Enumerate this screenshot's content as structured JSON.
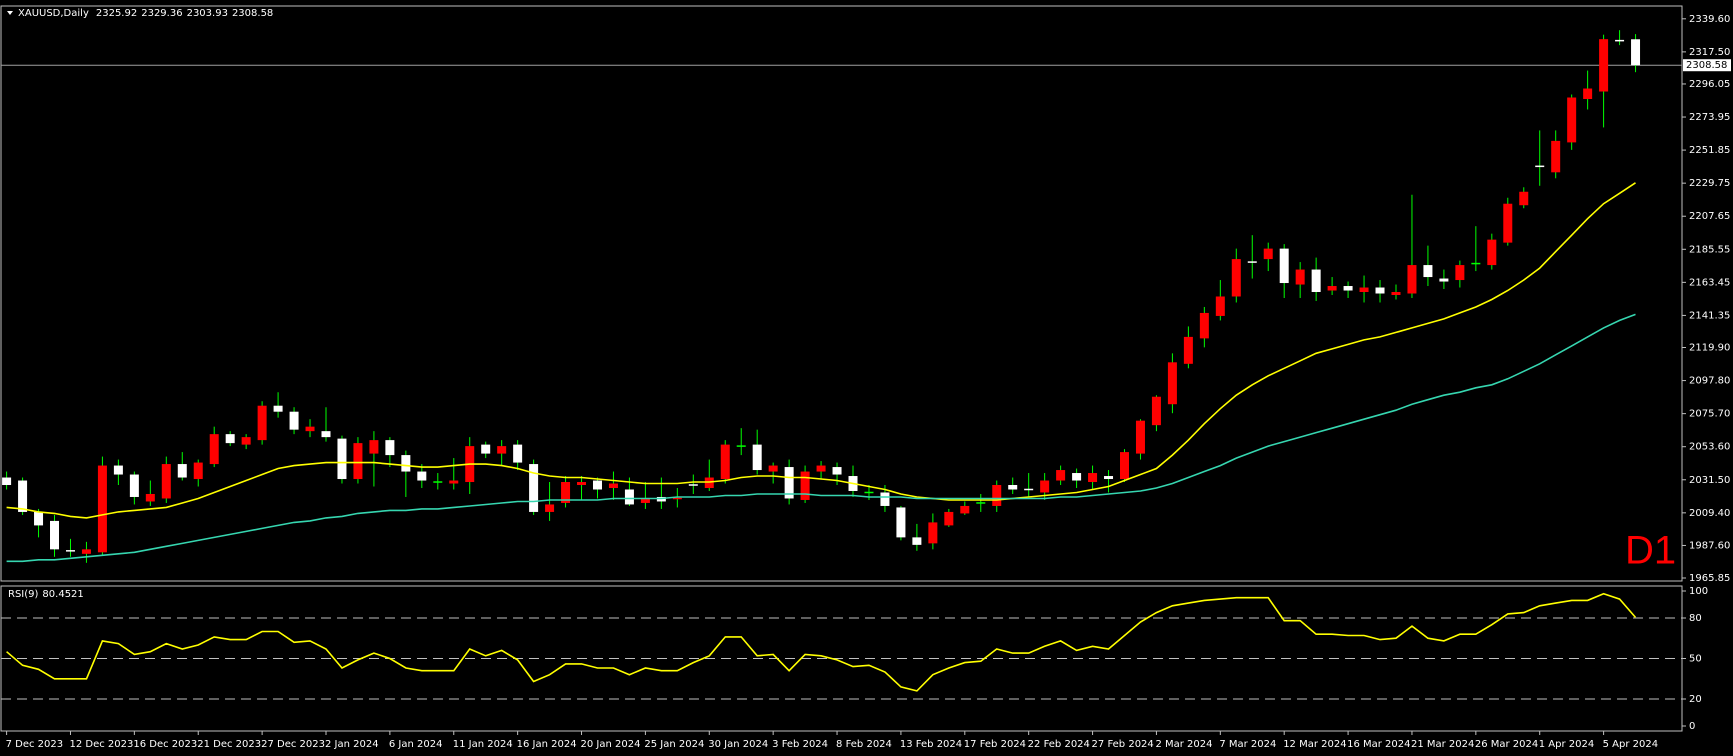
{
  "chart_data": [
    {
      "type": "candlestick",
      "title": "XAUUSD,Daily",
      "timeframe_label": "D1",
      "categories": [
        "7 Dec 2023",
        null,
        null,
        null,
        "12 Dec 2023",
        null,
        null,
        null,
        "16 Dec 2023",
        null,
        null,
        null,
        "21 Dec 2023",
        null,
        null,
        null,
        "27 Dec 2023",
        null,
        null,
        null,
        "2 Jan 2024",
        null,
        null,
        null,
        "6 Jan 2024",
        null,
        null,
        null,
        "11 Jan 2024",
        null,
        null,
        null,
        "16 Jan 2024",
        null,
        null,
        null,
        "20 Jan 2024",
        null,
        null,
        null,
        "25 Jan 2024",
        null,
        null,
        null,
        "30 Jan 2024",
        null,
        null,
        null,
        "3 Feb 2024",
        null,
        null,
        null,
        "8 Feb 2024",
        null,
        null,
        null,
        "13 Feb 2024",
        null,
        null,
        null,
        "17 Feb 2024",
        null,
        null,
        null,
        "22 Feb 2024",
        null,
        null,
        null,
        "27 Feb 2024",
        null,
        null,
        null,
        "2 Mar 2024",
        null,
        null,
        null,
        "7 Mar 2024",
        null,
        null,
        null,
        "12 Mar 2024",
        null,
        null,
        null,
        "16 Mar 2024",
        null,
        null,
        null,
        "21 Mar 2024",
        null,
        null,
        null,
        "26 Mar 2024",
        null,
        null,
        null,
        "1 Apr 2024",
        null,
        null,
        null,
        "5 Apr 2024",
        null,
        null
      ],
      "open": [
        2033,
        2031,
        2010,
        2004,
        1984,
        1982,
        1983,
        2041,
        2035,
        2017,
        2019,
        2042,
        2032,
        2042,
        2062,
        2055,
        2058,
        2081,
        2077,
        2064,
        2064,
        2059,
        2032,
        2049,
        2058,
        2048,
        2037,
        2030,
        2029,
        2030,
        2055,
        2049,
        2055,
        2042,
        2010,
        2016,
        2028,
        2031,
        2026,
        2025,
        2016,
        2020,
        2018,
        2028,
        2026,
        2032,
        2054,
        2055,
        2037,
        2040,
        2018,
        2037,
        2040,
        2034,
        2023,
        2023,
        2013,
        1993,
        1989,
        2001,
        2009,
        2016,
        2014,
        2028,
        2025,
        2023,
        2031,
        2036,
        2030,
        2034,
        2032,
        2049,
        2068,
        2082,
        2109,
        2126,
        2141,
        2154,
        2177,
        2179,
        2186,
        2162,
        2172,
        2158,
        2161,
        2157,
        2160,
        2155,
        2156,
        2175,
        2166,
        2165,
        2176,
        2175,
        2190,
        2215,
        2241,
        2237,
        2257,
        2286,
        2291,
        2325,
        2325.92
      ],
      "high": [
        2037,
        2033,
        2012,
        2008,
        1992,
        1990,
        2047,
        2045,
        2037,
        2031,
        2047,
        2050,
        2045,
        2067,
        2064,
        2062,
        2084,
        2090,
        2080,
        2072,
        2080,
        2061,
        2060,
        2064,
        2060,
        2051,
        2042,
        2036,
        2046,
        2060,
        2057,
        2058,
        2058,
        2045,
        2030,
        2034,
        2034,
        2033,
        2037,
        2033,
        2030,
        2033,
        2026,
        2035,
        2045,
        2058,
        2066,
        2065,
        2043,
        2045,
        2041,
        2044,
        2043,
        2041,
        2028,
        2028,
        2014,
        2002,
        2009,
        2012,
        2017,
        2022,
        2031,
        2033,
        2036,
        2036,
        2041,
        2039,
        2041,
        2038,
        2052,
        2072,
        2088,
        2116,
        2134,
        2147,
        2165,
        2186,
        2195,
        2190,
        2189,
        2177,
        2180,
        2167,
        2164,
        2168,
        2165,
        2162,
        2222,
        2188,
        2172,
        2178,
        2201,
        2196,
        2220,
        2227,
        2265,
        2265,
        2289,
        2305,
        2329,
        2332,
        2329.36
      ],
      "low": [
        2025,
        2008,
        1993,
        1980,
        1980,
        1976,
        1981,
        2028,
        2015,
        2014,
        2016,
        2031,
        2027,
        2040,
        2054,
        2052,
        2055,
        2073,
        2062,
        2060,
        2057,
        2029,
        2029,
        2027,
        2040,
        2020,
        2026,
        2025,
        2025,
        2022,
        2046,
        2041,
        2038,
        2008,
        2004,
        2013,
        2018,
        2019,
        2018,
        2014,
        2012,
        2012,
        2013,
        2022,
        2024,
        2029,
        2048,
        2035,
        2029,
        2015,
        2016,
        2032,
        2028,
        2020,
        2018,
        2010,
        1991,
        1984,
        1985,
        2000,
        2008,
        2010,
        2010,
        2022,
        2020,
        2018,
        2028,
        2026,
        2025,
        2023,
        2030,
        2045,
        2064,
        2076,
        2106,
        2120,
        2138,
        2150,
        2166,
        2171,
        2153,
        2153,
        2151,
        2155,
        2153,
        2150,
        2150,
        2152,
        2153,
        2161,
        2159,
        2160,
        2171,
        2172,
        2188,
        2213,
        2228,
        2233,
        2252,
        2279,
        2267,
        2322,
        2303.93
      ],
      "close": [
        2028,
        2010,
        2001,
        1985,
        1983,
        1985,
        2041,
        2035,
        2020,
        2022,
        2042,
        2033,
        2043,
        2062,
        2056,
        2060,
        2081,
        2077,
        2065,
        2067,
        2060,
        2032,
        2056,
        2058,
        2048,
        2037,
        2031,
        2030,
        2031,
        2054,
        2049,
        2054,
        2043,
        2010,
        2015,
        2030,
        2030,
        2025,
        2029,
        2015,
        2019,
        2017,
        2019,
        2027,
        2033,
        2055,
        2054,
        2038,
        2041,
        2019,
        2037,
        2041,
        2035,
        2024,
        2023,
        2014,
        1993,
        1988,
        2003,
        2010,
        2014,
        2016,
        2028,
        2025,
        2024,
        2031,
        2038,
        2031,
        2036,
        2032,
        2050,
        2071,
        2087,
        2110,
        2127,
        2143,
        2154,
        2179,
        2176,
        2186,
        2163,
        2172,
        2157,
        2161,
        2158,
        2160,
        2156,
        2157,
        2175,
        2167,
        2164,
        2175,
        2176,
        2192,
        2216,
        2224,
        2240,
        2258,
        2287,
        2293,
        2326,
        2324,
        2308.58
      ],
      "up_color": "#ff0000",
      "down_color": "#ffffff",
      "wick_color": "#00ff00",
      "price_line_color": "#a0a0a0",
      "overlays": [
        {
          "color": "#ffff00",
          "values": [
            2013,
            2012,
            2010,
            2009,
            2007,
            2006,
            2008,
            2010,
            2011,
            2012,
            2013,
            2016,
            2019,
            2023,
            2027,
            2031,
            2035,
            2039,
            2041,
            2042,
            2043,
            2043,
            2043,
            2043,
            2042,
            2041,
            2040,
            2040,
            2041,
            2042,
            2042,
            2041,
            2039,
            2036,
            2034,
            2033,
            2033,
            2032,
            2031,
            2030,
            2029,
            2029,
            2029,
            2030,
            2030,
            2031,
            2033,
            2034,
            2034,
            2033,
            2033,
            2032,
            2031,
            2029,
            2027,
            2025,
            2022,
            2020,
            2019,
            2018,
            2018,
            2018,
            2018,
            2019,
            2020,
            2021,
            2022,
            2023,
            2025,
            2027,
            2031,
            2035,
            2039,
            2048,
            2058,
            2069,
            2079,
            2088,
            2095,
            2101,
            2106,
            2111,
            2116,
            2119,
            2122,
            2125,
            2127,
            2130,
            2133,
            2136,
            2139,
            2143,
            2147,
            2152,
            2158,
            2165,
            2173,
            2184,
            2195,
            2206,
            2216,
            2223,
            2230
          ]
        },
        {
          "color": "#36d6b0",
          "values": [
            1977,
            1977,
            1978,
            1978,
            1979,
            1980,
            1981,
            1982,
            1983,
            1985,
            1987,
            1989,
            1991,
            1993,
            1995,
            1997,
            1999,
            2001,
            2003,
            2004,
            2006,
            2007,
            2009,
            2010,
            2011,
            2011,
            2012,
            2012,
            2013,
            2014,
            2015,
            2016,
            2017,
            2017,
            2018,
            2018,
            2018,
            2018,
            2019,
            2019,
            2019,
            2019,
            2020,
            2020,
            2020,
            2021,
            2021,
            2022,
            2022,
            2022,
            2022,
            2021,
            2021,
            2021,
            2020,
            2020,
            2020,
            2019,
            2019,
            2019,
            2019,
            2019,
            2019,
            2019,
            2019,
            2019,
            2020,
            2020,
            2021,
            2022,
            2023,
            2024,
            2026,
            2029,
            2033,
            2037,
            2041,
            2046,
            2050,
            2054,
            2057,
            2060,
            2063,
            2066,
            2069,
            2072,
            2075,
            2078,
            2082,
            2085,
            2088,
            2090,
            2093,
            2095,
            2099,
            2104,
            2109,
            2115,
            2121,
            2127,
            2133,
            2138,
            2142
          ]
        }
      ],
      "ylim": [
        1963.84,
        2348.16
      ],
      "yticks": [
        1965.85,
        {
          "value": 1987.6,
          "label": "1987.60"
        },
        {
          "value": 2009.4,
          "label": "2009.40"
        },
        {
          "value": 2031.5,
          "label": "2031.50"
        },
        {
          "value": 2053.6,
          "label": "2053.60"
        },
        {
          "value": 2075.7,
          "label": "2075.70"
        },
        {
          "value": 2097.8,
          "label": "2097.80"
        },
        {
          "value": 2119.9,
          "label": "2119.90"
        },
        2141.35,
        2163.45,
        2185.55,
        2207.65,
        2229.75,
        2251.85,
        2273.95,
        2296.05,
        {
          "value": 2317.5,
          "label": "2317.50"
        },
        {
          "value": 2339.6,
          "label": "2339.60"
        }
      ]
    },
    {
      "type": "line",
      "title": "RSI(9)",
      "color": "#ffff00",
      "values": [
        55,
        45,
        42,
        35,
        35,
        35,
        63,
        61,
        53,
        55,
        61,
        57,
        60,
        66,
        64,
        64,
        70,
        70,
        62,
        63,
        57,
        43,
        49,
        54,
        50,
        43,
        41,
        41,
        41,
        57,
        52,
        56,
        49,
        33,
        38,
        46,
        46,
        43,
        43,
        38,
        43,
        41,
        41,
        47,
        52,
        66,
        66,
        52,
        53,
        41,
        53,
        52,
        49,
        44,
        45,
        40,
        29,
        26,
        38,
        43,
        47,
        48,
        57,
        54,
        54,
        59,
        63,
        56,
        59,
        57,
        67,
        77,
        84,
        89,
        91,
        93,
        94,
        95,
        95,
        95,
        78,
        78,
        68,
        68,
        67,
        67,
        64,
        65,
        74,
        65,
        63,
        68,
        68,
        75,
        83,
        84,
        89,
        91,
        93,
        93,
        98,
        94,
        80.4521
      ],
      "levels": [
        20,
        50,
        80
      ],
      "ylim": [
        -3.7,
        103.7
      ],
      "yticks": [
        0,
        20,
        50,
        80,
        100
      ]
    }
  ]
}
